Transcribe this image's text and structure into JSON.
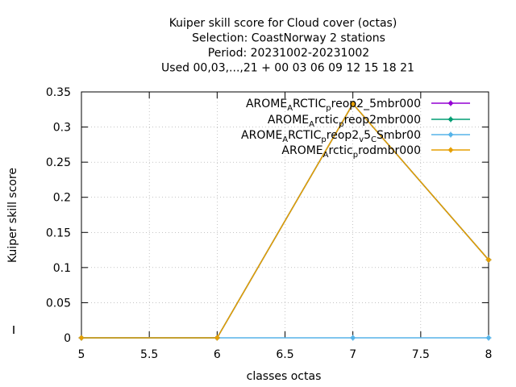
{
  "chart_data": {
    "type": "line",
    "title_lines": [
      "Kuiper skill score  for Cloud cover (octas)",
      "Selection: CoastNorway      2 stations",
      "Period: 20231002-20231002",
      "Used  00,03,...,21  + 00 03 06 09 12 15 18 21"
    ],
    "xlabel": "classes octas",
    "ylabel": "Kuiper skill score",
    "xlim": [
      5,
      8
    ],
    "ylim": [
      0,
      0.35
    ],
    "xticks": [
      5,
      5.5,
      6,
      6.5,
      7,
      7.5,
      8
    ],
    "xtick_labels": [
      "5",
      "5.5",
      "6",
      "6.5",
      "7",
      "7.5",
      "8"
    ],
    "yticks": [
      0,
      0.05,
      0.1,
      0.15,
      0.2,
      0.25,
      0.3,
      0.35
    ],
    "ytick_labels": [
      "0",
      "0.05",
      "0.1",
      "0.15",
      "0.2",
      "0.25",
      "0.3",
      "0.35"
    ],
    "grid": true,
    "legend_position": "top-right",
    "series": [
      {
        "legend_parts": [
          [
            "AROME",
            0
          ],
          [
            "A",
            1
          ],
          [
            "RCTIC",
            0
          ],
          [
            "p",
            1
          ],
          [
            "reop2",
            0
          ],
          [
            "_",
            0
          ],
          [
            "5mbr000",
            0
          ]
        ],
        "color": "#9400d3",
        "x": [
          5,
          6,
          7,
          8
        ],
        "y": [
          0,
          0,
          0.333,
          0.111
        ]
      },
      {
        "legend_parts": [
          [
            "AROME",
            0
          ],
          [
            "A",
            1
          ],
          [
            "rctic",
            0
          ],
          [
            "p",
            1
          ],
          [
            "reop2mbr000",
            0
          ]
        ],
        "color": "#009e73",
        "x": [
          5,
          6,
          7,
          8
        ],
        "y": [
          0,
          0,
          0.333,
          0.111
        ]
      },
      {
        "legend_parts": [
          [
            "AROME",
            0
          ],
          [
            "A",
            1
          ],
          [
            "RCTIC",
            0
          ],
          [
            "p",
            1
          ],
          [
            "reop2",
            0
          ],
          [
            "v",
            1
          ],
          [
            "5",
            0
          ],
          [
            "C",
            1
          ],
          [
            "Smbr00",
            0
          ]
        ],
        "color": "#56b4e9",
        "x": [
          5,
          6,
          7,
          8
        ],
        "y": [
          0,
          0,
          0,
          0
        ]
      },
      {
        "legend_parts": [
          [
            "AROME",
            0
          ],
          [
            "A",
            1
          ],
          [
            "rctic",
            0
          ],
          [
            "p",
            1
          ],
          [
            "rodmbr000",
            0
          ]
        ],
        "color": "#e69f00",
        "x": [
          5,
          6,
          7,
          8
        ],
        "y": [
          0,
          0,
          0.333,
          0.111
        ]
      }
    ]
  }
}
